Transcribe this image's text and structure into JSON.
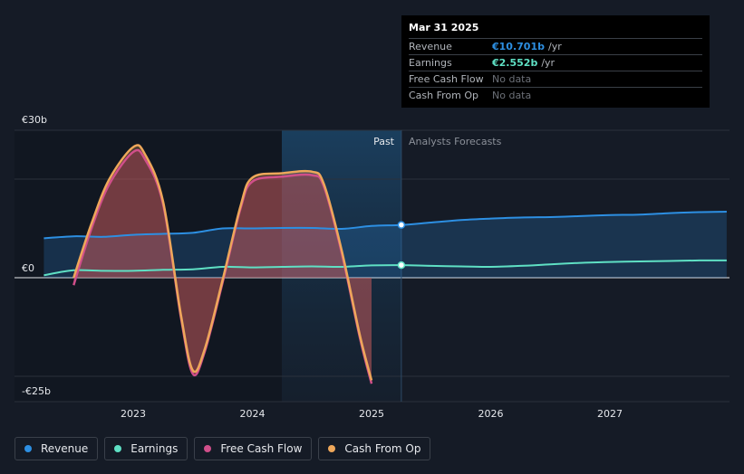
{
  "chart_data": {
    "type": "line",
    "x_ticks": [
      "2023",
      "2024",
      "2025",
      "2026",
      "2027"
    ],
    "y_labels": [
      "€30b",
      "€0",
      "-€25b"
    ],
    "ylim": [
      -25,
      30
    ],
    "past_label": "Past",
    "forecast_label": "Analysts Forecasts",
    "series": [
      {
        "name": "Revenue",
        "color": "#2d8fe2",
        "points": [
          [
            2022.25,
            8.0
          ],
          [
            2022.5,
            8.4
          ],
          [
            2022.75,
            8.3
          ],
          [
            2023.0,
            8.7
          ],
          [
            2023.25,
            8.9
          ],
          [
            2023.5,
            9.1
          ],
          [
            2023.75,
            10.0
          ],
          [
            2024.0,
            10.0
          ],
          [
            2024.25,
            10.1
          ],
          [
            2024.5,
            10.1
          ],
          [
            2024.75,
            9.9
          ],
          [
            2025.0,
            10.5
          ],
          [
            2025.25,
            10.7
          ],
          [
            2025.5,
            11.2
          ],
          [
            2025.75,
            11.7
          ],
          [
            2026.0,
            12.0
          ],
          [
            2026.25,
            12.2
          ],
          [
            2026.5,
            12.3
          ],
          [
            2026.75,
            12.5
          ],
          [
            2027.0,
            12.7
          ],
          [
            2027.25,
            12.8
          ],
          [
            2027.5,
            13.1
          ],
          [
            2027.75,
            13.3
          ],
          [
            2027.98,
            13.4
          ]
        ]
      },
      {
        "name": "Earnings",
        "color": "#5fe0c4",
        "points": [
          [
            2022.25,
            0.5
          ],
          [
            2022.5,
            1.5
          ],
          [
            2022.75,
            1.4
          ],
          [
            2023.0,
            1.4
          ],
          [
            2023.25,
            1.6
          ],
          [
            2023.5,
            1.7
          ],
          [
            2023.75,
            2.2
          ],
          [
            2024.0,
            2.1
          ],
          [
            2024.25,
            2.2
          ],
          [
            2024.5,
            2.3
          ],
          [
            2024.75,
            2.2
          ],
          [
            2025.0,
            2.5
          ],
          [
            2025.25,
            2.55
          ],
          [
            2025.5,
            2.4
          ],
          [
            2025.75,
            2.3
          ],
          [
            2026.0,
            2.2
          ],
          [
            2026.25,
            2.4
          ],
          [
            2026.5,
            2.7
          ],
          [
            2026.75,
            3.0
          ],
          [
            2027.0,
            3.2
          ],
          [
            2027.25,
            3.3
          ],
          [
            2027.5,
            3.4
          ],
          [
            2027.75,
            3.5
          ],
          [
            2027.98,
            3.5
          ]
        ]
      },
      {
        "name": "Free Cash Flow",
        "color": "#d04f8a",
        "points": [
          [
            2022.5,
            -1.5
          ],
          [
            2022.65,
            10.0
          ],
          [
            2022.8,
            19.0
          ],
          [
            2023.0,
            25.5
          ],
          [
            2023.1,
            24.0
          ],
          [
            2023.25,
            15.0
          ],
          [
            2023.4,
            -8.0
          ],
          [
            2023.5,
            -19.5
          ],
          [
            2023.6,
            -15.0
          ],
          [
            2023.75,
            -1.0
          ],
          [
            2023.9,
            14.0
          ],
          [
            2024.0,
            19.5
          ],
          [
            2024.25,
            20.5
          ],
          [
            2024.5,
            20.8
          ],
          [
            2024.6,
            18.5
          ],
          [
            2024.75,
            5.0
          ],
          [
            2024.9,
            -12.0
          ],
          [
            2025.0,
            -21.5
          ]
        ]
      },
      {
        "name": "Cash From Op",
        "color": "#eea75a",
        "points": [
          [
            2022.5,
            0.0
          ],
          [
            2022.65,
            11.0
          ],
          [
            2022.8,
            20.0
          ],
          [
            2023.0,
            26.5
          ],
          [
            2023.1,
            25.0
          ],
          [
            2023.25,
            15.5
          ],
          [
            2023.4,
            -7.5
          ],
          [
            2023.5,
            -18.8
          ],
          [
            2023.6,
            -14.5
          ],
          [
            2023.75,
            -0.5
          ],
          [
            2023.9,
            14.5
          ],
          [
            2024.0,
            20.3
          ],
          [
            2024.25,
            21.2
          ],
          [
            2024.5,
            21.5
          ],
          [
            2024.6,
            19.0
          ],
          [
            2024.75,
            5.5
          ],
          [
            2024.9,
            -11.5
          ],
          [
            2025.0,
            -20.8
          ]
        ]
      }
    ]
  },
  "tooltip": {
    "date": "Mar 31 2025",
    "rows": [
      {
        "label": "Revenue",
        "value": "€10.701b",
        "unit": "/yr",
        "color": "#2d8fe2"
      },
      {
        "label": "Earnings",
        "value": "€2.552b",
        "unit": "/yr",
        "color": "#5fe0c4"
      },
      {
        "label": "Free Cash Flow",
        "value": "No data",
        "unit": "",
        "color": ""
      },
      {
        "label": "Cash From Op",
        "value": "No data",
        "unit": "",
        "color": ""
      }
    ]
  },
  "legend": [
    {
      "label": "Revenue",
      "color": "#2d8fe2"
    },
    {
      "label": "Earnings",
      "color": "#5fe0c4"
    },
    {
      "label": "Free Cash Flow",
      "color": "#d04f8a"
    },
    {
      "label": "Cash From Op",
      "color": "#eea75a"
    }
  ]
}
